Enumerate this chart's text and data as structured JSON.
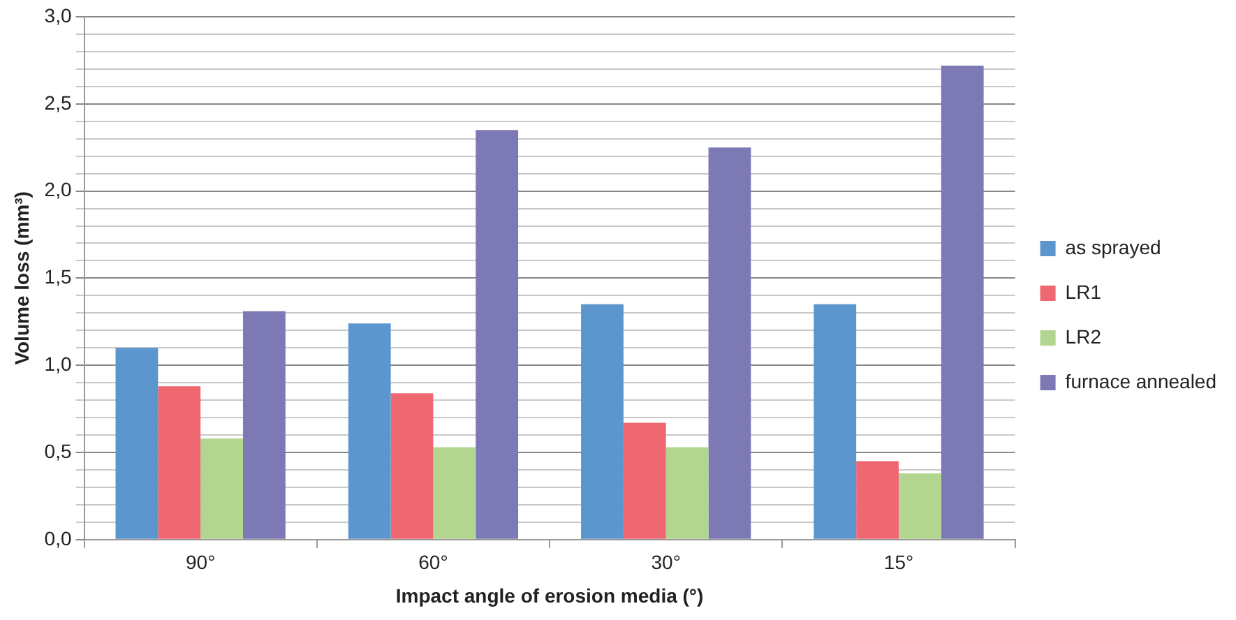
{
  "chart_data": {
    "type": "bar",
    "xlabel": "Impact angle of erosion media (°)",
    "ylabel": "Volume loss (mm³)",
    "categories": [
      "90°",
      "60°",
      "30°",
      "15°"
    ],
    "series": [
      {
        "name": "as sprayed",
        "color": "#5b96cf",
        "values": [
          1.1,
          1.24,
          1.35,
          1.35
        ]
      },
      {
        "name": "LR1",
        "color": "#ef6770",
        "values": [
          0.88,
          0.84,
          0.67,
          0.45
        ]
      },
      {
        "name": "LR2",
        "color": "#b2d68f",
        "values": [
          0.58,
          0.53,
          0.53,
          0.38
        ]
      },
      {
        "name": "furnace annealed",
        "color": "#7d79b5",
        "values": [
          1.31,
          2.35,
          2.25,
          2.72
        ]
      }
    ],
    "ylim": [
      0,
      3
    ],
    "yticks": [
      {
        "value": 0,
        "label": "0,0"
      },
      {
        "value": 0.1,
        "label": null
      },
      {
        "value": 0.2,
        "label": null
      },
      {
        "value": 0.3,
        "label": null
      },
      {
        "value": 0.4,
        "label": null
      },
      {
        "value": 0.5,
        "label": "0,5"
      },
      {
        "value": 0.6,
        "label": null
      },
      {
        "value": 0.7,
        "label": null
      },
      {
        "value": 0.8,
        "label": null
      },
      {
        "value": 0.9,
        "label": null
      },
      {
        "value": 1,
        "label": "1,0"
      },
      {
        "value": 1.1,
        "label": null
      },
      {
        "value": 1.2,
        "label": null
      },
      {
        "value": 1.3,
        "label": null
      },
      {
        "value": 1.4,
        "label": null
      },
      {
        "value": 1.5,
        "label": "1,5"
      },
      {
        "value": 1.6,
        "label": null
      },
      {
        "value": 1.7,
        "label": null
      },
      {
        "value": 1.8,
        "label": null
      },
      {
        "value": 1.9,
        "label": null
      },
      {
        "value": 2,
        "label": "2,0"
      },
      {
        "value": 2.1,
        "label": null
      },
      {
        "value": 2.2,
        "label": null
      },
      {
        "value": 2.3,
        "label": null
      },
      {
        "value": 2.4,
        "label": null
      },
      {
        "value": 2.5,
        "label": "2,5"
      },
      {
        "value": 2.6,
        "label": null
      },
      {
        "value": 2.7,
        "label": null
      },
      {
        "value": 2.8,
        "label": null
      },
      {
        "value": 2.9,
        "label": null
      },
      {
        "value": 3,
        "label": "3,0"
      }
    ],
    "grid": "y",
    "legend": "right"
  }
}
